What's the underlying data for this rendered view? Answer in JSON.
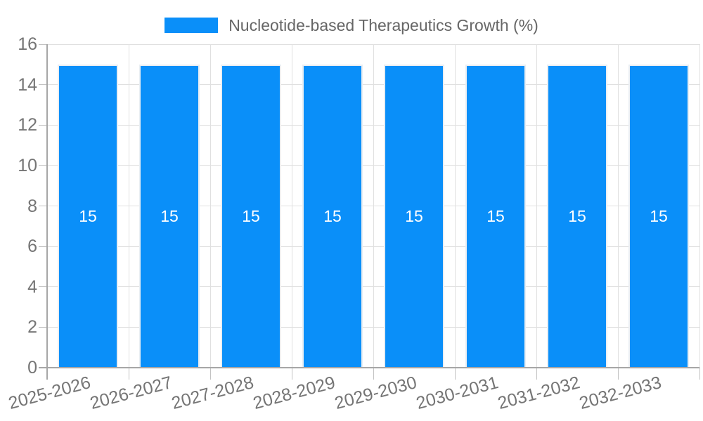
{
  "chart_data": {
    "type": "bar",
    "title": "Nucleotide-based Therapeutics Growth (%)",
    "legend": {
      "label": "Nucleotide-based Therapeutics Growth (%)",
      "position": "top-center"
    },
    "categories": [
      "2025-2026",
      "2026-2027",
      "2027-2028",
      "2028-2029",
      "2029-2030",
      "2030-2031",
      "2031-2032",
      "2032-2033"
    ],
    "series": [
      {
        "name": "Nucleotide-based Therapeutics Growth (%)",
        "values": [
          15,
          15,
          15,
          15,
          15,
          15,
          15,
          15
        ]
      }
    ],
    "bar_value_labels": [
      "15",
      "15",
      "15",
      "15",
      "15",
      "15",
      "15",
      "15"
    ],
    "xlabel": "",
    "ylabel": "",
    "ylim": [
      0,
      16
    ],
    "yticks": [
      0,
      2,
      4,
      6,
      8,
      10,
      12,
      14,
      16
    ],
    "grid": true,
    "x_tick_rotation": -15
  },
  "colors": {
    "bar": "#0a8ff9",
    "grid": "#e0e0e0",
    "axis_line": "#a6a6a6",
    "tick": "#c2c2c2",
    "axis_label": "#757575",
    "legend_text": "#666666",
    "value_label": "#ffffff"
  }
}
